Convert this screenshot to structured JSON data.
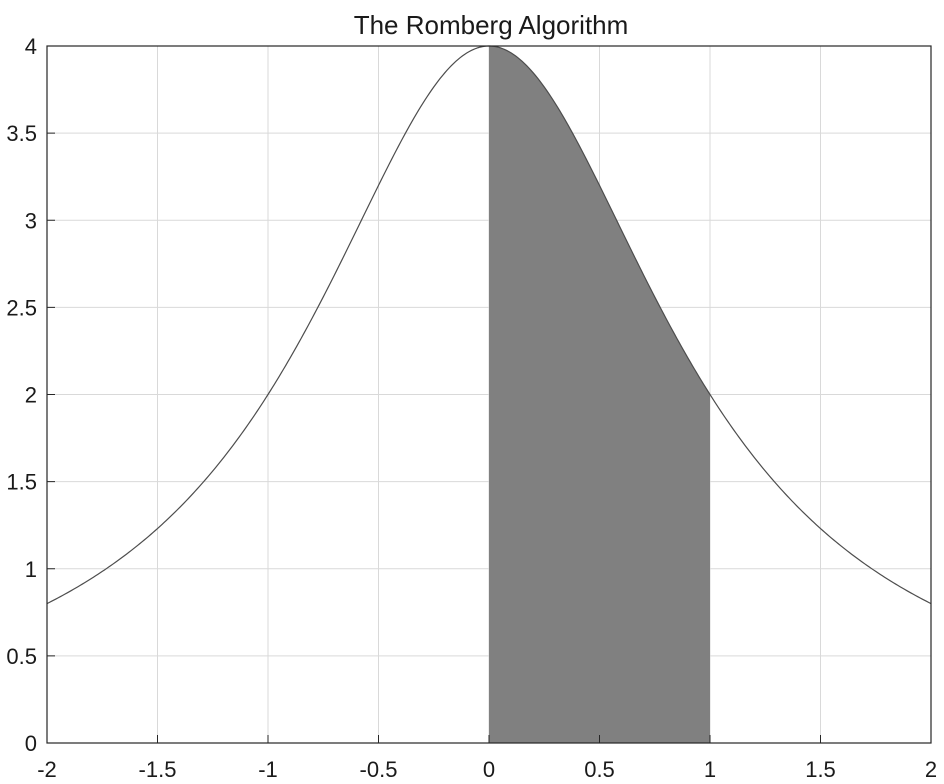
{
  "chart_data": {
    "type": "area",
    "title": "The Romberg Algorithm",
    "xlabel": "",
    "ylabel": "",
    "xlim": [
      -2,
      2
    ],
    "ylim": [
      0,
      4
    ],
    "grid": true,
    "function": "4/(1+x^2)",
    "curve": {
      "x": [
        -2,
        -1.75,
        -1.5,
        -1.25,
        -1,
        -0.75,
        -0.5,
        -0.25,
        0,
        0.25,
        0.5,
        0.75,
        1,
        1.25,
        1.5,
        1.75,
        2
      ],
      "y": [
        0.8,
        0.985,
        1.231,
        1.561,
        2.0,
        2.56,
        3.2,
        3.765,
        4.0,
        3.765,
        3.2,
        2.56,
        2.0,
        1.561,
        1.231,
        0.985,
        0.8
      ]
    },
    "shaded_region": {
      "x_from": 0,
      "x_to": 1,
      "color": "#808080"
    },
    "xticks": [
      -2,
      -1.5,
      -1,
      -0.5,
      0,
      0.5,
      1,
      1.5,
      2
    ],
    "xtick_labels": [
      "-2",
      "-1.5",
      "-1",
      "-0.5",
      "0",
      "0.5",
      "1",
      "1.5",
      "2"
    ],
    "yticks": [
      0,
      0.5,
      1,
      1.5,
      2,
      2.5,
      3,
      3.5,
      4
    ],
    "ytick_labels": [
      "0",
      "0.5",
      "1",
      "1.5",
      "2",
      "2.5",
      "3",
      "3.5",
      "4"
    ],
    "colors": {
      "curve": "#4d4d4d",
      "fill": "#808080",
      "grid": "#d9d9d9",
      "axis": "#262626"
    }
  }
}
